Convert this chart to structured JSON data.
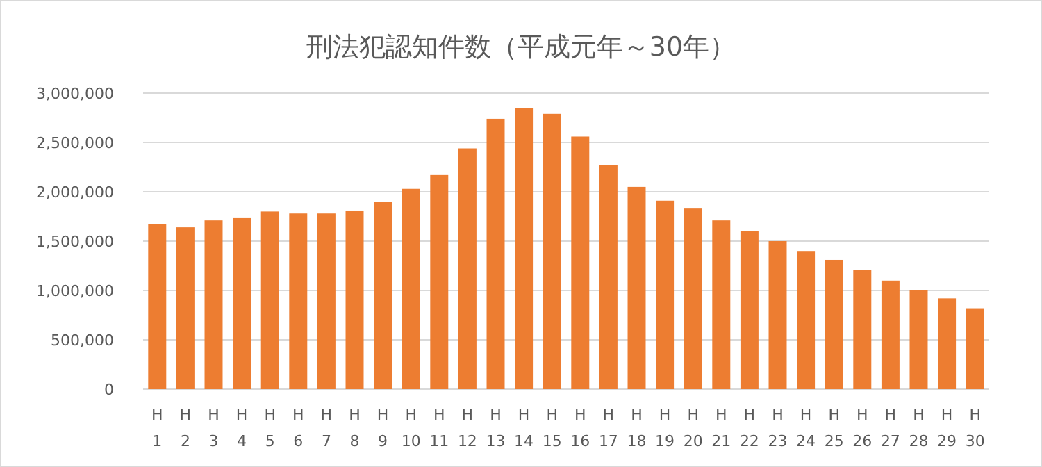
{
  "chart_data": {
    "type": "bar",
    "title": "刑法犯認知件数（平成元年～30年）",
    "categories": [
      "H 1",
      "H 2",
      "H 3",
      "H 4",
      "H 5",
      "H 6",
      "H 7",
      "H 8",
      "H 9",
      "H 10",
      "H 11",
      "H 12",
      "H 13",
      "H 14",
      "H 15",
      "H 16",
      "H 17",
      "H 18",
      "H 19",
      "H 20",
      "H 21",
      "H 22",
      "H 23",
      "H 24",
      "H 25",
      "H 26",
      "H 27",
      "H 28",
      "H 29",
      "H 30"
    ],
    "values": [
      1670000,
      1640000,
      1710000,
      1740000,
      1800000,
      1780000,
      1780000,
      1810000,
      1900000,
      2030000,
      2170000,
      2440000,
      2740000,
      2850000,
      2790000,
      2560000,
      2270000,
      2050000,
      1910000,
      1830000,
      1710000,
      1600000,
      1500000,
      1400000,
      1310000,
      1210000,
      1100000,
      1000000,
      920000,
      820000
    ],
    "color": "#ed7d31",
    "ylim": [
      0,
      3000000
    ],
    "yticks": [
      0,
      {
        "value": 500000,
        "label": "500,000"
      },
      {
        "value": 1000000,
        "label": "1,000,000"
      },
      {
        "value": 1500000,
        "label": "1,500,000"
      },
      {
        "value": 2000000,
        "label": "2,000,000"
      },
      {
        "value": 2500000,
        "label": "2,500,000"
      },
      {
        "value": 3000000,
        "label": "3,000,000"
      }
    ],
    "grid": "y"
  }
}
